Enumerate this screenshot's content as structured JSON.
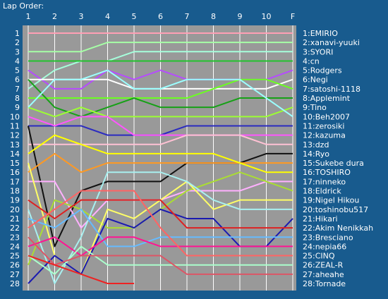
{
  "chart_data": {
    "type": "line",
    "title": "Lap Order:",
    "x": [
      "1",
      "2",
      "3",
      "4",
      "5",
      "6",
      "7",
      "8",
      "9",
      "10",
      "F"
    ],
    "positions": [
      "1",
      "2",
      "3",
      "4",
      "5",
      "6",
      "7",
      "8",
      "9",
      "10",
      "11",
      "12",
      "13",
      "14",
      "15",
      "16",
      "17",
      "18",
      "19",
      "20",
      "21",
      "22",
      "23",
      "24",
      "25",
      "26",
      "27",
      "28"
    ],
    "y_inverted": true,
    "ylim": [
      1,
      28
    ],
    "grid": true,
    "series": [
      {
        "name": "1:EMIRIO",
        "color": "#ff9fb5",
        "values": [
          1,
          1,
          1,
          1,
          1,
          1,
          1,
          1,
          1,
          1,
          1
        ]
      },
      {
        "name": "2:xanavi-yuuki",
        "color": "#a6ffa6",
        "values": [
          3,
          3,
          3,
          2,
          2,
          2,
          2,
          2,
          2,
          2,
          2
        ]
      },
      {
        "name": "3:SYORI",
        "color": "#a6ffdc",
        "values": [
          7,
          5,
          4,
          4,
          3,
          3,
          3,
          3,
          3,
          3,
          3
        ]
      },
      {
        "name": "4:cn",
        "color": "#22c22e",
        "values": [
          4,
          4,
          4,
          4,
          4,
          4,
          4,
          4,
          4,
          4,
          4
        ]
      },
      {
        "name": "5:Rodgers",
        "color": "#b64bff",
        "values": [
          5,
          7,
          7,
          5,
          6,
          5,
          6,
          6,
          6,
          6,
          5
        ]
      },
      {
        "name": "6:Negi",
        "color": "#ffffff",
        "values": [
          6,
          6,
          6,
          6,
          7,
          7,
          7,
          7,
          7,
          7,
          6
        ]
      },
      {
        "name": "7:satoshi-1118",
        "color": "#6bff21",
        "values": [
          8,
          8,
          8,
          8,
          8,
          8,
          8,
          7,
          6,
          6,
          7
        ]
      },
      {
        "name": "8:Applemint",
        "color": "#16a116",
        "values": [
          6,
          9,
          10,
          9,
          8,
          9,
          9,
          9,
          8,
          8,
          8
        ]
      },
      {
        "name": "9:Tino",
        "color": "#9cff32",
        "values": [
          9,
          10,
          9,
          10,
          10,
          10,
          10,
          10,
          10,
          10,
          9
        ]
      },
      {
        "name": "10:Beh2007",
        "color": "#9bffff",
        "values": [
          9,
          6,
          6,
          5,
          7,
          7,
          6,
          6,
          6,
          8,
          10
        ]
      },
      {
        "name": "11:zerosiki",
        "color": "#2b2bc0",
        "values": [
          11,
          11,
          11,
          12,
          12,
          12,
          11,
          11,
          11,
          11,
          11
        ]
      },
      {
        "name": "12:kazuma",
        "color": "#ff55ff",
        "values": [
          10,
          11,
          10,
          10,
          12,
          12,
          12,
          12,
          12,
          12,
          12
        ]
      },
      {
        "name": "13:dzd",
        "color": "#ffc1d4",
        "values": [
          13,
          13,
          13,
          13,
          13,
          13,
          12,
          12,
          12,
          13,
          13
        ]
      },
      {
        "name": "14:Ryo",
        "color": "#111111",
        "values": [
          11,
          24,
          18,
          17,
          17,
          17,
          15,
          15,
          15,
          14,
          14
        ]
      },
      {
        "name": "15:Sukebe dura",
        "color": "#ff9922",
        "values": [
          16,
          14,
          16,
          15,
          15,
          15,
          15,
          15,
          15,
          15,
          15
        ]
      },
      {
        "name": "16:TOSHIRO",
        "color": "#ffff00",
        "values": [
          14,
          12,
          13,
          14,
          14,
          14,
          14,
          14,
          15,
          16,
          16
        ]
      },
      {
        "name": "17:ninneko",
        "color": "#ffb0ff",
        "values": [
          17,
          17,
          22,
          19,
          19,
          19,
          18,
          18,
          18,
          17,
          17
        ]
      },
      {
        "name": "18:Eldrick",
        "color": "#aadd33",
        "values": [
          26,
          19,
          20,
          22,
          22,
          20,
          18,
          17,
          16,
          17,
          18
        ]
      },
      {
        "name": "19:Nigel Hikou",
        "color": "#ffff66",
        "values": [
          15,
          25,
          27,
          20,
          21,
          19,
          17,
          20,
          19,
          19,
          19
        ]
      },
      {
        "name": "20:toshinobu517",
        "color": "#a8f0f0",
        "values": [
          20,
          28,
          23,
          16,
          16,
          16,
          17,
          19,
          20,
          20,
          20
        ]
      },
      {
        "name": "21:Hikari",
        "color": "#1a1ab0",
        "values": [
          28,
          25,
          27,
          21,
          22,
          20,
          21,
          21,
          24,
          24,
          21
        ]
      },
      {
        "name": "22:Akim Nenikkah",
        "color": "#dd2222",
        "values": [
          19,
          21,
          19,
          19,
          19,
          19,
          22,
          22,
          22,
          22,
          22
        ]
      },
      {
        "name": "23:Bresciano",
        "color": "#66bbff",
        "values": [
          21,
          22,
          20,
          24,
          24,
          23,
          23,
          23,
          23,
          23,
          23
        ]
      },
      {
        "name": "24:nepia66",
        "color": "#ff1493",
        "values": [
          24,
          23,
          25,
          23,
          23,
          24,
          24,
          24,
          24,
          24,
          24
        ]
      },
      {
        "name": "25:CINQ",
        "color": "#ff6464",
        "values": [
          22,
          20,
          18,
          18,
          18,
          22,
          25,
          25,
          25,
          25,
          25
        ]
      },
      {
        "name": "26:ZEAL-R",
        "color": "#aaffcc",
        "values": [
          25,
          27,
          24,
          26,
          26,
          26,
          26,
          26,
          26,
          26,
          26
        ]
      },
      {
        "name": "27:aheahe",
        "color": "#dd5566",
        "values": [
          23,
          26,
          25,
          25,
          25,
          25,
          27,
          27,
          27,
          27,
          27
        ]
      },
      {
        "name": "28:Tornade",
        "color": "#ee2222",
        "values": [
          25,
          26,
          27,
          28,
          28,
          null,
          null,
          null,
          null,
          null,
          28
        ]
      }
    ]
  }
}
